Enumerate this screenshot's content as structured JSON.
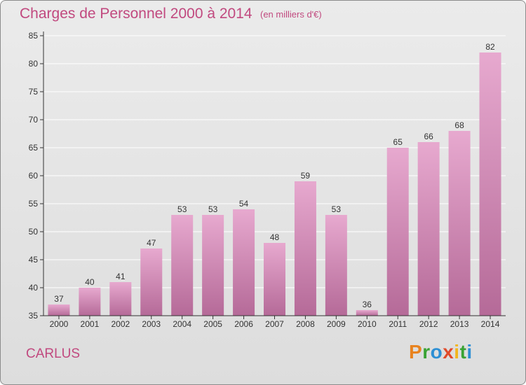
{
  "header": {
    "title": "Charges de Personnel 2000 à 2014",
    "subtitle": "(en milliers d'€)"
  },
  "footer": {
    "town": "CARLUS",
    "brand": "Proxiti",
    "brand_colors": [
      "#e8831f",
      "#3aa335",
      "#2d8fd4",
      "#e04a2a",
      "#f2b51b",
      "#3aa335",
      "#2d8fd4"
    ]
  },
  "colors": {
    "bar_top": "#e7a9cf",
    "bar_bottom": "#b56a98",
    "accent": "#c1497f",
    "grid": "#ffffff",
    "axis": "#333333"
  },
  "chart_data": {
    "type": "bar",
    "title": "Charges de Personnel 2000 à 2014",
    "subtitle": "(en milliers d'€)",
    "categories": [
      "2000",
      "2001",
      "2002",
      "2003",
      "2004",
      "2005",
      "2006",
      "2007",
      "2008",
      "2009",
      "2010",
      "2011",
      "2012",
      "2013",
      "2014"
    ],
    "values": [
      37,
      40,
      41,
      47,
      53,
      53,
      54,
      48,
      59,
      53,
      36,
      65,
      66,
      68,
      82
    ],
    "ylim": [
      35,
      85
    ],
    "yticks": [
      35,
      40,
      45,
      50,
      55,
      60,
      65,
      70,
      75,
      80,
      85
    ],
    "grid": true,
    "data_labels": true
  }
}
